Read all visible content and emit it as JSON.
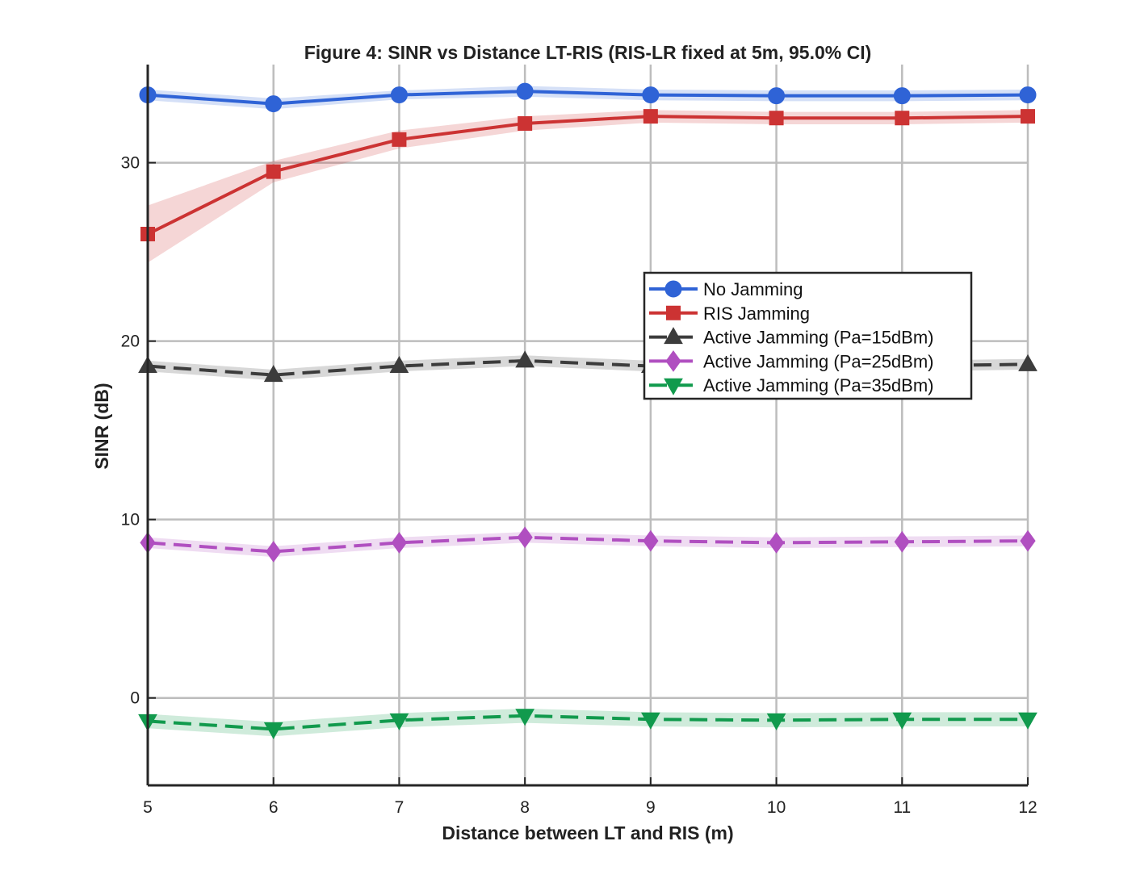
{
  "chart_data": {
    "type": "line",
    "title": "Figure 4: SINR vs Distance LT-RIS (RIS-LR fixed at 5m, 95.0% CI)",
    "xlabel": "Distance between LT and RIS (m)",
    "ylabel": "SINR (dB)",
    "x": [
      5,
      6,
      7,
      8,
      9,
      10,
      11,
      12
    ],
    "xlim": [
      5,
      12
    ],
    "ylim": [
      -4.9,
      35.5
    ],
    "xticks": [
      "5",
      "6",
      "7",
      "8",
      "9",
      "10",
      "11",
      "12"
    ],
    "yticks": [
      0,
      10,
      20,
      30
    ],
    "ytick_labels": [
      "0",
      "10",
      "20",
      "30"
    ],
    "grid": true,
    "legend_position": "center-right",
    "series": [
      {
        "name": "No Jamming",
        "color": "#2f63d6",
        "marker": "circle",
        "dash": "solid",
        "values": [
          33.8,
          33.3,
          33.8,
          34.0,
          33.8,
          33.75,
          33.75,
          33.8
        ],
        "ci_low": [
          33.5,
          33.0,
          33.55,
          33.7,
          33.5,
          33.45,
          33.45,
          33.5
        ],
        "ci_high": [
          34.1,
          33.6,
          34.05,
          34.3,
          34.1,
          34.05,
          34.05,
          34.1
        ]
      },
      {
        "name": "RIS Jamming",
        "color": "#cc3333",
        "marker": "square",
        "dash": "solid",
        "values": [
          26.0,
          29.5,
          31.3,
          32.2,
          32.6,
          32.5,
          32.5,
          32.6
        ],
        "ci_low": [
          24.4,
          28.9,
          30.8,
          31.8,
          32.25,
          32.15,
          32.15,
          32.25
        ],
        "ci_high": [
          27.6,
          30.1,
          31.8,
          32.6,
          32.95,
          32.85,
          32.85,
          32.95
        ]
      },
      {
        "name": "Active Jamming (Pa=15dBm)",
        "color": "#3c3c3c",
        "marker": "triangle-up",
        "dash": "dashed",
        "values": [
          18.6,
          18.1,
          18.6,
          18.9,
          18.6,
          18.6,
          18.6,
          18.7
        ],
        "ci_low": [
          18.3,
          17.8,
          18.3,
          18.6,
          18.3,
          18.3,
          18.3,
          18.4
        ],
        "ci_high": [
          18.9,
          18.4,
          18.9,
          19.2,
          18.9,
          18.9,
          18.9,
          19.0
        ]
      },
      {
        "name": "Active Jamming (Pa=25dBm)",
        "color": "#b04fc0",
        "marker": "diamond",
        "dash": "dashed",
        "values": [
          8.7,
          8.2,
          8.7,
          9.0,
          8.8,
          8.7,
          8.75,
          8.8
        ],
        "ci_low": [
          8.4,
          7.9,
          8.4,
          8.7,
          8.5,
          8.4,
          8.45,
          8.5
        ],
        "ci_high": [
          9.0,
          8.5,
          9.0,
          9.3,
          9.1,
          9.0,
          9.05,
          9.1
        ]
      },
      {
        "name": "Active Jamming (Pa=35dBm)",
        "color": "#119a4d",
        "marker": "triangle-down",
        "dash": "dashed",
        "values": [
          -1.3,
          -1.75,
          -1.25,
          -1.0,
          -1.2,
          -1.25,
          -1.2,
          -1.2
        ],
        "ci_low": [
          -1.7,
          -2.15,
          -1.65,
          -1.4,
          -1.6,
          -1.65,
          -1.6,
          -1.6
        ],
        "ci_high": [
          -0.9,
          -1.35,
          -0.85,
          -0.6,
          -0.8,
          -0.85,
          -0.8,
          -0.8
        ]
      }
    ]
  }
}
